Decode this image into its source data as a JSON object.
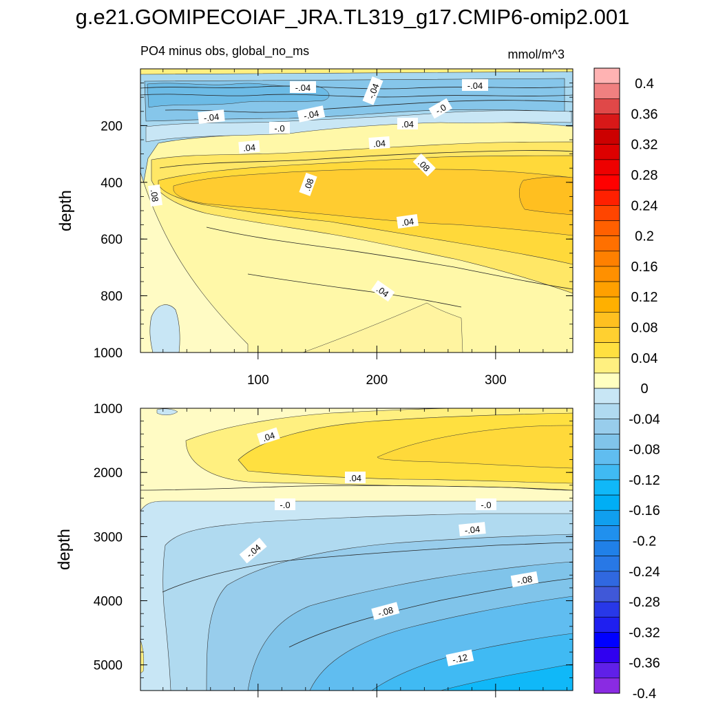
{
  "chart_data": {
    "type": "contour",
    "title": "g.e21.GOMIPECOIAF_JRA.TL319_g17.CMIP6-omip2.001",
    "subtitle_left": "PO4 minus obs, global_no_ms",
    "units": "mmol/m^3",
    "colorbar": {
      "levels": [
        -0.4,
        -0.38,
        -0.36,
        -0.34,
        -0.32,
        -0.3,
        -0.28,
        -0.26,
        -0.24,
        -0.22,
        -0.2,
        -0.18,
        -0.16,
        -0.14,
        -0.12,
        -0.1,
        -0.08,
        -0.06,
        -0.04,
        -0.02,
        0,
        0.02,
        0.04,
        0.06,
        0.08,
        0.1,
        0.12,
        0.14,
        0.16,
        0.18,
        0.2,
        0.22,
        0.24,
        0.26,
        0.28,
        0.3,
        0.32,
        0.34,
        0.36,
        0.38,
        0.4
      ],
      "labels": [
        "0.4",
        "0.36",
        "0.32",
        "0.28",
        "0.24",
        "0.2",
        "0.16",
        "0.12",
        "0.08",
        "0.04",
        "0",
        "-0.04",
        "-0.08",
        "-0.12",
        "-0.16",
        "-0.2",
        "-0.24",
        "-0.28",
        "-0.32",
        "-0.36",
        "-0.4"
      ],
      "colors": [
        "#ffb3b3",
        "#f08080",
        "#e04848",
        "#d81818",
        "#cc0000",
        "#dd0000",
        "#ee0000",
        "#ff0000",
        "#ff2000",
        "#ff4500",
        "#ff6000",
        "#ff7000",
        "#ff8000",
        "#ff9000",
        "#ffa000",
        "#ffb000",
        "#ffc020",
        "#ffd030",
        "#ffe040",
        "#fff080",
        "#ffffc0",
        "#c8e6f5",
        "#b0daf0",
        "#98cdec",
        "#80c4ea",
        "#60bdf0",
        "#40baf3",
        "#10b8f8",
        "#00aef5",
        "#109fef",
        "#2090ee",
        "#2080e8",
        "#2878e6",
        "#3068e0",
        "#4058d8",
        "#2838e8",
        "#1f1ff0",
        "#0000ff",
        "#3000f0",
        "#6020e8",
        "#8a2be2"
      ]
    },
    "panels": [
      {
        "name": "upper",
        "ylabel": "depth",
        "ylim": [
          1000,
          0
        ],
        "y_ticks": [
          "200",
          "400",
          "600",
          "800",
          "1000"
        ],
        "xlim": [
          1,
          365
        ],
        "x_ticks": [
          "100",
          "200",
          "300"
        ],
        "contour_labels": [
          "-.04",
          "-.04",
          "-.04",
          "-.04",
          "-.04",
          "-.0",
          "-.0",
          ".04",
          ".04",
          ".04",
          ".08",
          ".08",
          ".08",
          ".04",
          ".04"
        ]
      },
      {
        "name": "lower",
        "ylabel": "depth",
        "ylim": [
          5400,
          1000
        ],
        "y_ticks": [
          "1000",
          "2000",
          "3000",
          "4000",
          "5000"
        ],
        "xlim": [
          1,
          365
        ],
        "contour_labels": [
          ".04",
          ".04",
          "-.0",
          "-.0",
          "-.04",
          "-.04",
          "-.08",
          "-.08",
          "-.12"
        ]
      }
    ]
  }
}
